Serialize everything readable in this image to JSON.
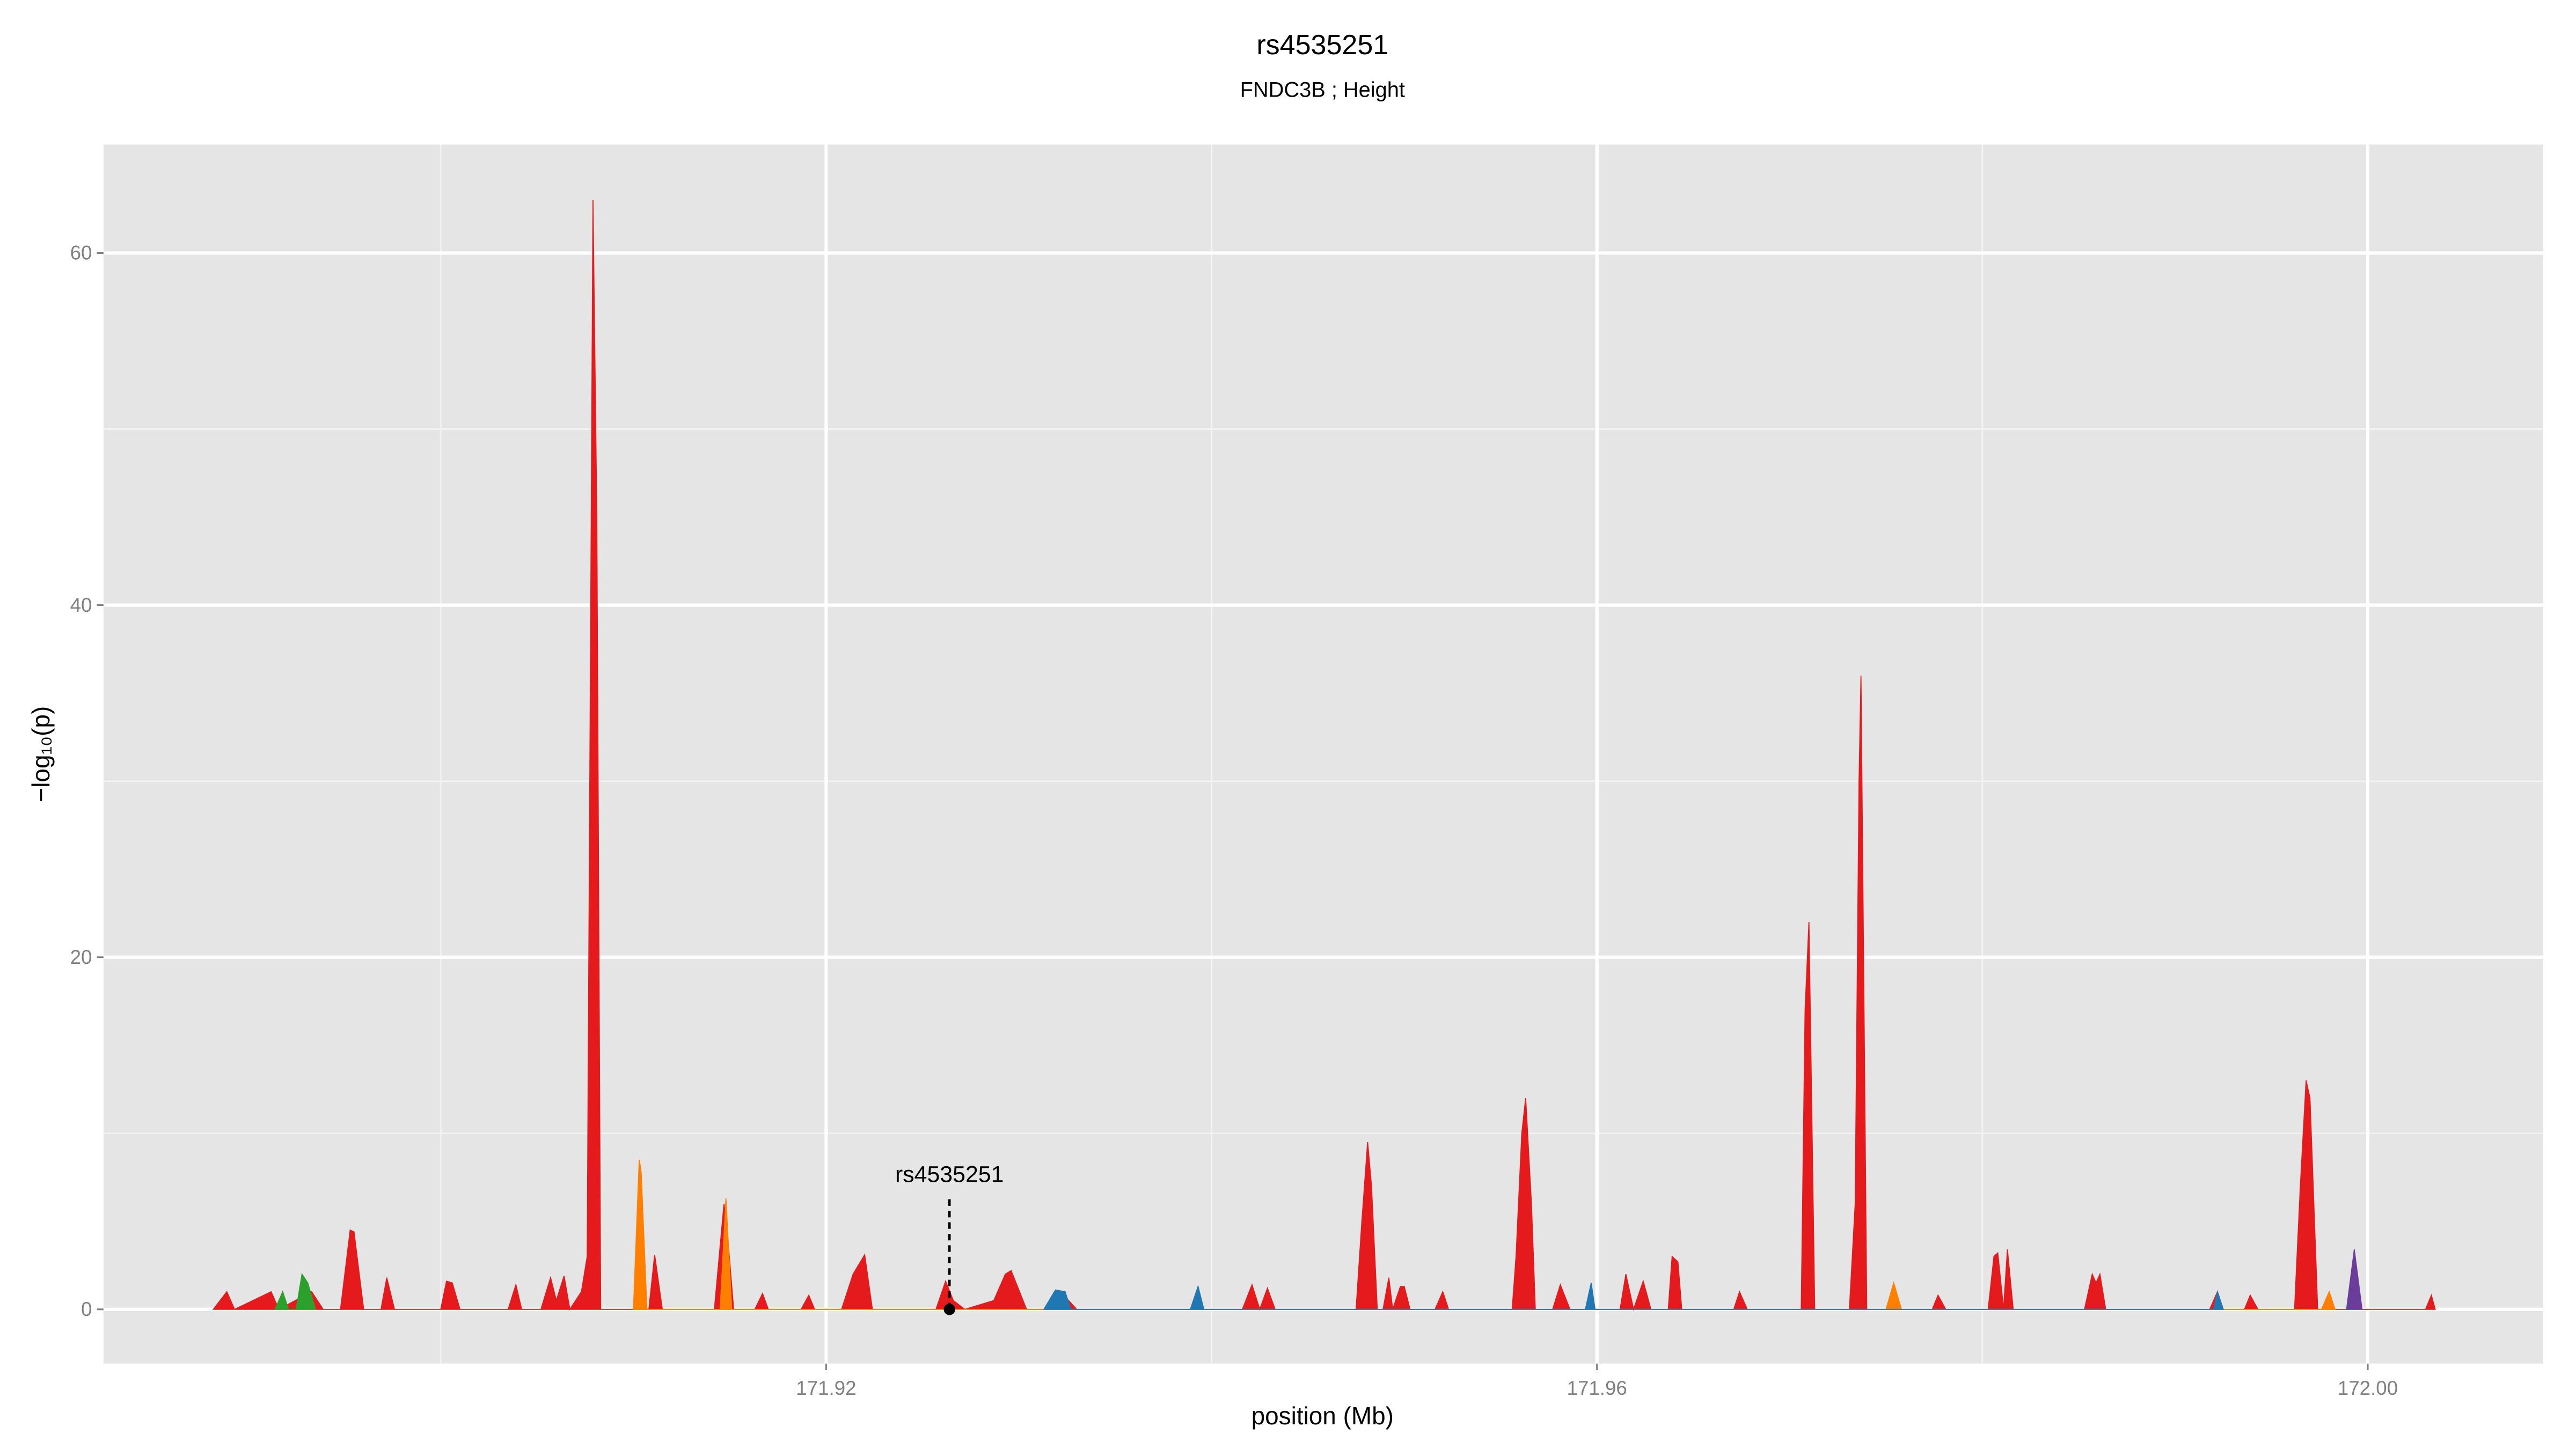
{
  "chart_data": {
    "type": "area",
    "title": "rs4535251",
    "subtitle": "FNDC3B ; Height",
    "x_label": "position (Mb)",
    "y_label": "−log₁₀(p)",
    "xlim": [
      171.8825,
      172.0091
    ],
    "ylim": [
      -3.08,
      66.16
    ],
    "xticks": [
      171.92,
      171.96,
      {
        "value": 172,
        "label": "172.00"
      }
    ],
    "yticks": [
      0,
      20,
      40,
      60
    ],
    "minor_xticks": [
      171.9,
      171.94,
      171.98
    ],
    "minor_yticks": [
      10,
      30,
      50
    ],
    "grid": true,
    "series": [
      {
        "color": "#e41a1c",
        "x": [
          171.8882,
          171.8889,
          171.8893,
          171.8912,
          171.8916,
          171.8933,
          171.8939,
          171.8948,
          171.8953,
          171.8955,
          171.896,
          171.8969,
          171.8972,
          171.8976,
          171.9,
          171.9003,
          171.9006,
          171.901,
          171.9035,
          171.9039,
          171.9042,
          171.9052,
          171.9057,
          171.906,
          171.9064,
          171.9067,
          171.9073,
          171.9076,
          171.9079,
          171.9081,
          171.9083,
          171.9108,
          171.9111,
          171.9115,
          171.9142,
          171.9147,
          171.9149,
          171.9152,
          171.9163,
          171.9167,
          171.917,
          171.9187,
          171.9191,
          171.9194,
          171.9208,
          171.9214,
          171.922,
          171.9224,
          171.9257,
          171.9262,
          171.9266,
          171.9272,
          171.9287,
          171.9293,
          171.9296,
          171.9304,
          171.9321,
          171.9325,
          171.933,
          171.9416,
          171.9421,
          171.9425,
          171.9429,
          171.9433,
          171.9475,
          171.9478,
          171.9481,
          171.9483,
          171.9486,
          171.9489,
          171.9492,
          171.9494,
          171.9498,
          171.95,
          171.9503,
          171.9516,
          171.952,
          171.9523,
          171.9556,
          171.9558,
          171.9561,
          171.9563,
          171.9566,
          171.9568,
          171.9577,
          171.9581,
          171.9586,
          171.9612,
          171.9615,
          171.9619,
          171.9624,
          171.9628,
          171.9637,
          171.9639,
          171.9642,
          171.9644,
          171.9671,
          171.9674,
          171.9678,
          171.9706,
          171.9708,
          171.971,
          171.9713,
          171.9731,
          171.9734,
          171.9736,
          171.9737,
          171.974,
          171.9774,
          171.9777,
          171.9781,
          171.9803,
          171.9806,
          171.9808,
          171.9811,
          171.9813,
          171.9816,
          171.9853,
          171.9857,
          171.9859,
          171.9861,
          171.9864,
          171.9918,
          171.9922,
          171.9925,
          171.9936,
          171.9939,
          171.9943,
          171.9962,
          171.9965,
          171.9968,
          171.997,
          171.9974,
          172.003,
          172.0033,
          172.0035
        ],
        "values": [
          0,
          1,
          0,
          1,
          0,
          1,
          0,
          0,
          4.5,
          4.4,
          0,
          0,
          1.8,
          0,
          0,
          1.6,
          1.5,
          0,
          0,
          1.4,
          0,
          0,
          1.8,
          0.5,
          1.9,
          0,
          1,
          3,
          63,
          45,
          0,
          0,
          3.1,
          0,
          0,
          6,
          4,
          0,
          0,
          0.9,
          0,
          0,
          0.8,
          0,
          0,
          2,
          3.1,
          0,
          0,
          1.6,
          0.5,
          0,
          0.5,
          2,
          2.2,
          0,
          0,
          0.6,
          0,
          0,
          1.4,
          0,
          1.2,
          0,
          0,
          5,
          9.5,
          7,
          0,
          0,
          1.8,
          0,
          1.3,
          1.3,
          0,
          0,
          1,
          0,
          0,
          3,
          10,
          12,
          6,
          0,
          0,
          1.4,
          0,
          0,
          2,
          0,
          1.6,
          0,
          0,
          3,
          2.7,
          0,
          0,
          1,
          0,
          0,
          17,
          22,
          0,
          0,
          6,
          30,
          36,
          0,
          0,
          0.8,
          0,
          0,
          3,
          3.2,
          0,
          3.4,
          0,
          0,
          2,
          1.5,
          2,
          0,
          0,
          1,
          0,
          0,
          0.8,
          0,
          0,
          7,
          13,
          12,
          0,
          0,
          0.8,
          0
        ]
      },
      {
        "color": "#ff7f00",
        "x": [
          171.91,
          171.9103,
          171.9104,
          171.9107,
          171.9145,
          171.9148,
          171.9151,
          171.975,
          171.9754,
          171.9758,
          171.9976,
          171.998,
          171.9983
        ],
        "values": [
          0,
          8.5,
          7.8,
          0,
          0,
          6.3,
          0,
          0,
          1.5,
          0,
          0,
          1,
          0
        ]
      },
      {
        "color": "#2ca02c",
        "x": [
          171.8914,
          171.8918,
          171.8921,
          171.8925,
          171.8928,
          171.8931,
          171.8935
        ],
        "values": [
          0,
          1,
          0,
          0,
          2,
          1.5,
          0
        ]
      },
      {
        "color": "#1f78b4",
        "x": [
          171.9313,
          171.9319,
          171.9324,
          171.9327,
          171.9389,
          171.9393,
          171.9396,
          171.9594,
          171.9597,
          171.9599,
          171.992,
          171.9922,
          171.9925
        ],
        "values": [
          0,
          1.1,
          1,
          0,
          0,
          1.3,
          0,
          0,
          1.5,
          0,
          0,
          1,
          0
        ]
      },
      {
        "color": "#6a3d9a",
        "x": [
          171.9989,
          171.9993,
          171.9997
        ],
        "values": [
          0,
          3.4,
          0
        ]
      }
    ],
    "annotation": {
      "text": "rs4535251",
      "x": 171.9264,
      "y": 0
    }
  }
}
